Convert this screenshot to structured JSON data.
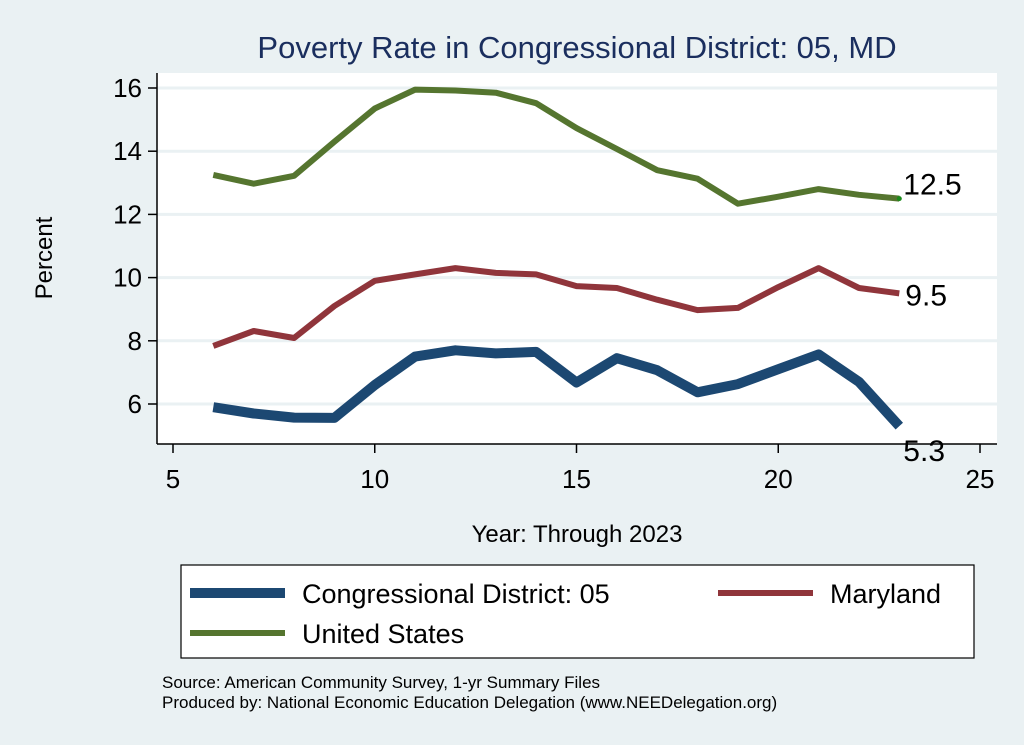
{
  "chart_data": {
    "type": "line",
    "title": "Poverty Rate in Congressional District:  05, MD",
    "xlabel": "Year: Through 2023",
    "ylabel": "Percent",
    "xlim": [
      4.6,
      25.4
    ],
    "ylim": [
      4.75,
      16.5
    ],
    "xticks": [
      5,
      10,
      15,
      20,
      25
    ],
    "yticks": [
      6,
      8,
      10,
      12,
      14,
      16
    ],
    "grid": true,
    "legend_position": "bottom",
    "x": [
      6,
      7,
      8,
      9,
      10,
      11,
      12,
      13,
      14,
      15,
      16,
      17,
      18,
      19,
      20,
      21,
      22,
      23
    ],
    "series": [
      {
        "name": "Congressional District:  05",
        "color": "#1c4872",
        "values": [
          5.9,
          5.7,
          5.57,
          5.56,
          6.6,
          7.5,
          7.7,
          7.6,
          7.65,
          6.68,
          7.45,
          7.07,
          6.37,
          6.63,
          7.1,
          7.57,
          6.7,
          5.3
        ],
        "end_label": "5.3"
      },
      {
        "name": "Maryland",
        "color": "#90353b",
        "values": [
          7.84,
          8.31,
          8.09,
          9.1,
          9.9,
          10.1,
          10.3,
          10.15,
          10.1,
          9.73,
          9.67,
          9.3,
          8.97,
          9.04,
          9.7,
          10.3,
          9.67,
          9.5
        ],
        "end_label": "9.5"
      },
      {
        "name": "United States",
        "color": "#55752f",
        "values": [
          13.25,
          12.97,
          13.22,
          14.3,
          15.35,
          15.95,
          15.92,
          15.85,
          15.52,
          14.73,
          14.07,
          13.4,
          13.13,
          12.34,
          12.56,
          12.8,
          12.62,
          12.5
        ],
        "end_label": "12.5"
      }
    ],
    "footer": [
      "Source: American Community Survey, 1-yr Summary Files",
      "Produced by: National Economic Education Delegation (www.NEEDelegation.org)"
    ]
  }
}
